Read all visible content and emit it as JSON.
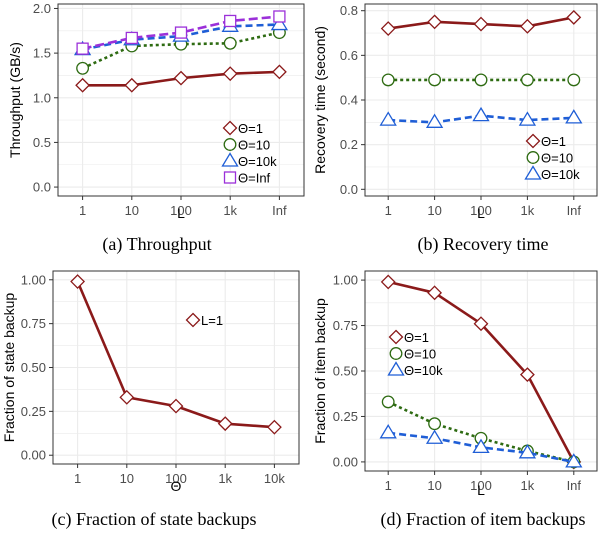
{
  "colors": {
    "theta1": "#8b1a1a",
    "theta10": "#2e6b12",
    "theta10k": "#1f5ed6",
    "thetaInf": "#9b30d9",
    "grid": "#ebebeb",
    "panel_border": "#333333"
  },
  "chart_data": [
    {
      "type": "line",
      "caption": "(a) Throughput",
      "xlabel": "L",
      "ylabel": "Throughput (GB/s)",
      "categories": [
        "1",
        "10",
        "100",
        "1k",
        "Inf"
      ],
      "ylim": [
        -0.1,
        2.05
      ],
      "yticks": [
        "0.0",
        "0.5",
        "1.0",
        "1.5",
        "2.0"
      ],
      "legend_position": "bottom-right",
      "series": [
        {
          "name": "Θ=1",
          "color": "#8b1a1a",
          "marker": "diamond",
          "dash": "solid",
          "values": [
            1.14,
            1.14,
            1.22,
            1.27,
            1.29
          ]
        },
        {
          "name": "Θ=10",
          "color": "#2e6b12",
          "marker": "circle",
          "dash": "dotted",
          "values": [
            1.33,
            1.58,
            1.6,
            1.61,
            1.73
          ]
        },
        {
          "name": "Θ=10k",
          "color": "#1f5ed6",
          "marker": "triangle",
          "dash": "dashed",
          "values": [
            1.54,
            1.65,
            1.69,
            1.8,
            1.82
          ]
        },
        {
          "name": "Θ=Inf",
          "color": "#9b30d9",
          "marker": "square",
          "dash": "longdash",
          "values": [
            1.55,
            1.67,
            1.73,
            1.86,
            1.91
          ]
        }
      ]
    },
    {
      "type": "line",
      "caption": "(b) Recovery time",
      "xlabel": "L",
      "ylabel": "Recovery time (second)",
      "categories": [
        "1",
        "10",
        "100",
        "1k",
        "Inf"
      ],
      "ylim": [
        -0.03,
        0.83
      ],
      "yticks": [
        "0.0",
        "0.2",
        "0.4",
        "0.6",
        "0.8"
      ],
      "legend_position": "right",
      "series": [
        {
          "name": "Θ=1",
          "color": "#8b1a1a",
          "marker": "diamond",
          "dash": "solid",
          "values": [
            0.72,
            0.75,
            0.74,
            0.73,
            0.77
          ]
        },
        {
          "name": "Θ=10",
          "color": "#2e6b12",
          "marker": "circle",
          "dash": "dotted",
          "values": [
            0.49,
            0.49,
            0.49,
            0.49,
            0.49
          ]
        },
        {
          "name": "Θ=10k",
          "color": "#1f5ed6",
          "marker": "triangle",
          "dash": "dashed",
          "values": [
            0.31,
            0.3,
            0.33,
            0.31,
            0.32
          ]
        }
      ]
    },
    {
      "type": "line",
      "caption": "(c) Fraction of state backups",
      "xlabel": "Θ",
      "ylabel": "Fraction of state backup",
      "categories": [
        "1",
        "10",
        "100",
        "1k",
        "10k"
      ],
      "ylim": [
        -0.05,
        1.05
      ],
      "yticks": [
        "0.00",
        "0.25",
        "0.50",
        "0.75",
        "1.00"
      ],
      "legend_position": "top-right",
      "series": [
        {
          "name": "L=1",
          "color": "#8b1a1a",
          "marker": "diamond",
          "dash": "solid",
          "values": [
            0.99,
            0.33,
            0.28,
            0.18,
            0.16
          ]
        }
      ]
    },
    {
      "type": "line",
      "caption": "(d) Fraction of item backups",
      "xlabel": "L",
      "ylabel": "Fraction of item backup",
      "categories": [
        "1",
        "10",
        "100",
        "1k",
        "Inf"
      ],
      "ylim": [
        -0.05,
        1.05
      ],
      "yticks": [
        "0.00",
        "0.25",
        "0.50",
        "0.75",
        "1.00"
      ],
      "legend_position": "left",
      "series": [
        {
          "name": "Θ=1",
          "color": "#8b1a1a",
          "marker": "diamond",
          "dash": "solid",
          "values": [
            0.99,
            0.93,
            0.76,
            0.48,
            0.0
          ]
        },
        {
          "name": "Θ=10",
          "color": "#2e6b12",
          "marker": "circle",
          "dash": "dotted",
          "values": [
            0.33,
            0.21,
            0.13,
            0.06,
            0.0
          ]
        },
        {
          "name": "Θ=10k",
          "color": "#1f5ed6",
          "marker": "triangle",
          "dash": "dashed",
          "values": [
            0.16,
            0.13,
            0.08,
            0.05,
            0.0
          ]
        }
      ]
    }
  ]
}
